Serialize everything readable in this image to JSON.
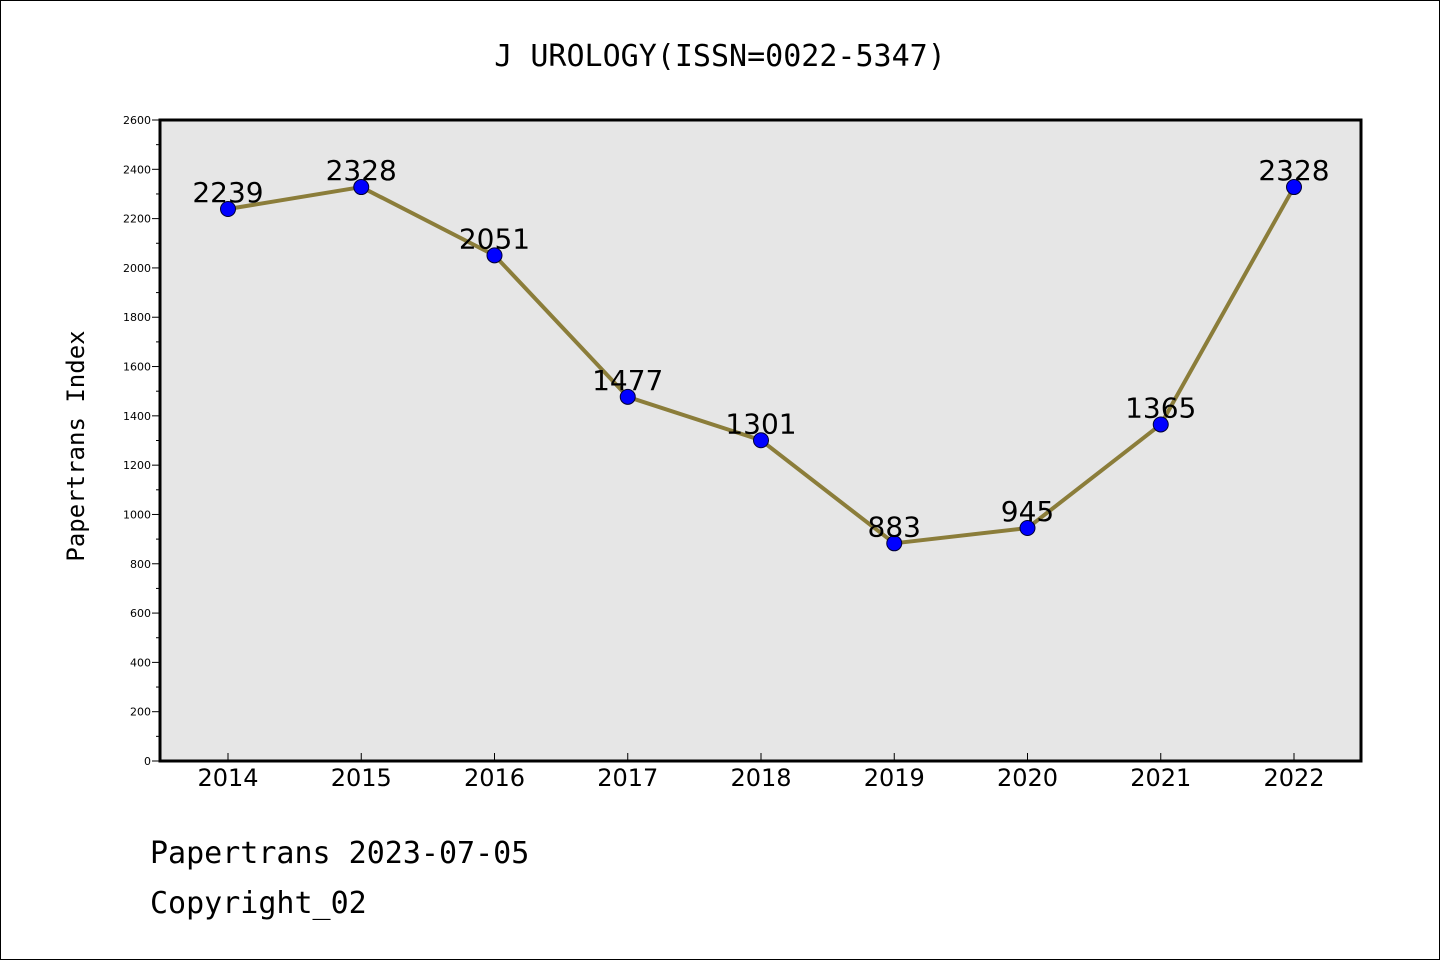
{
  "chart_data": {
    "type": "line",
    "title": "J UROLOGY(ISSN=0022-5347)",
    "xlabel": "",
    "ylabel": "Papertrans Index",
    "categories": [
      "2014",
      "2015",
      "2016",
      "2017",
      "2018",
      "2019",
      "2020",
      "2021",
      "2022"
    ],
    "series": [
      {
        "values": [
          2239,
          2328,
          2051,
          1477,
          1301,
          883,
          945,
          1365,
          2328
        ],
        "line_color": "#8b7d3a",
        "marker_color": "#0000ff"
      }
    ],
    "ylim": [
      0,
      2600
    ],
    "yticks": [
      0,
      200,
      400,
      600,
      800,
      1000,
      1200,
      1400,
      1600,
      1800,
      2000,
      2200,
      2400,
      2600
    ],
    "grid": false,
    "legend": "none",
    "plot_background": "#e6e6e6",
    "data_labels": true
  },
  "footer": {
    "source_line": "Papertrans 2023-07-05",
    "copyright_line": "Copyright_02"
  }
}
